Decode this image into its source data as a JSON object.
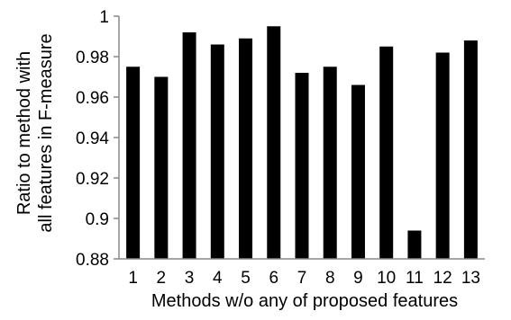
{
  "chart_data": {
    "type": "bar",
    "title": "",
    "xlabel": "Methods w/o any of proposed features",
    "ylabel_lines": [
      "Ratio to method with",
      "all features in F-measure"
    ],
    "categories": [
      "1",
      "2",
      "3",
      "4",
      "5",
      "6",
      "7",
      "8",
      "9",
      "10",
      "11",
      "12",
      "13"
    ],
    "values": [
      0.975,
      0.97,
      0.992,
      0.986,
      0.989,
      0.995,
      0.972,
      0.975,
      0.966,
      0.985,
      0.894,
      0.982,
      0.988
    ],
    "ylim": [
      0.88,
      1.0
    ],
    "yticks": [
      "0.88",
      "0.9",
      "0.92",
      "0.94",
      "0.96",
      "0.98",
      "1"
    ],
    "grid": false,
    "bar_color": "#000000",
    "axis_color": "#888888"
  }
}
